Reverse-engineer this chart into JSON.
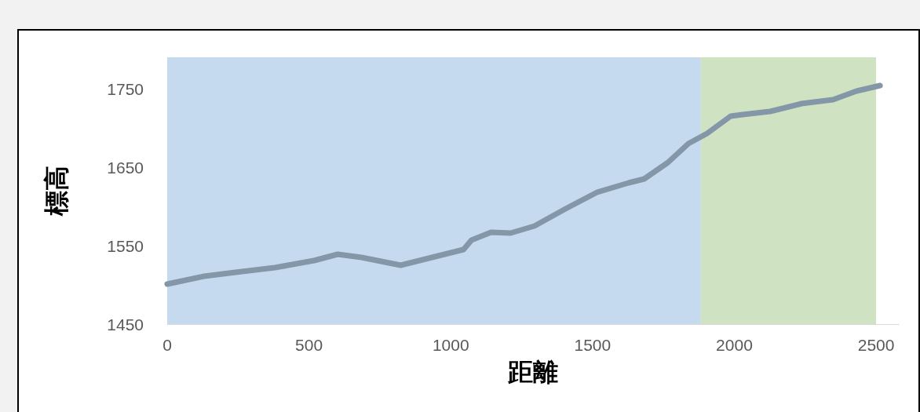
{
  "chart_data": {
    "type": "line",
    "xlabel": "距離",
    "ylabel": "標高",
    "x": [
      0,
      130,
      241,
      380,
      518,
      601,
      685,
      823,
      934,
      1045,
      1073,
      1142,
      1211,
      1295,
      1405,
      1516,
      1627,
      1682,
      1766,
      1838,
      1904,
      1987,
      2029,
      2126,
      2237,
      2348,
      2431,
      2514
    ],
    "series": [
      {
        "color": "#8497a8",
        "values": [
          1501,
          1511,
          1516,
          1522,
          1531,
          1539,
          1535,
          1525,
          1535,
          1545,
          1557,
          1567,
          1566,
          1575,
          1597,
          1618,
          1630,
          1635,
          1656,
          1680,
          1693,
          1715,
          1717,
          1721,
          1731,
          1736,
          1747,
          1754
        ]
      }
    ],
    "xlim": [
      0,
      2580
    ],
    "xticks": [
      0,
      500,
      1000,
      1500,
      2000,
      2500
    ],
    "ylim": [
      1450,
      1790
    ],
    "yticks": [
      1450,
      1550,
      1650,
      1750
    ],
    "bands": [
      {
        "axis": "x",
        "from": 0,
        "to": 1882,
        "color": "#c5d9ef"
      },
      {
        "axis": "x",
        "from": 1882,
        "to": 2500,
        "color": "#cfe2c2"
      }
    ],
    "grid": false,
    "line_style": "solid"
  }
}
